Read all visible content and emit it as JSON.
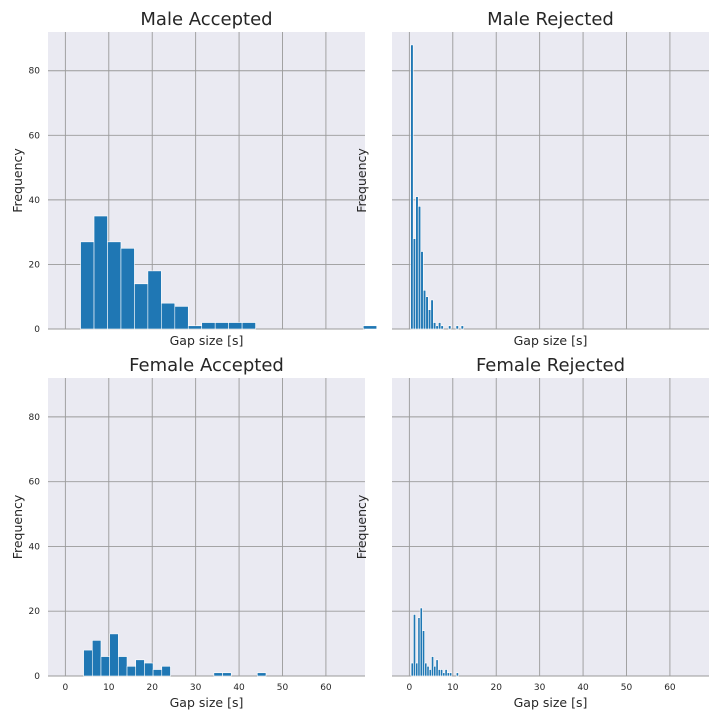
{
  "chart_data": [
    {
      "type": "bar",
      "title": "Male Accepted",
      "xlabel": "Gap size [s]",
      "ylabel": "Frequency",
      "xlim": [
        -4,
        69
      ],
      "ylim": [
        0,
        92
      ],
      "xticks": [
        0,
        10,
        20,
        30,
        40,
        50,
        60
      ],
      "yticks": [
        0,
        20,
        40,
        60,
        80
      ],
      "show_xticklabels": false,
      "show_yticklabels": true,
      "show_xlabel": true,
      "grid": true,
      "bin_width": 3.1,
      "bin_start": 3.5,
      "counts": [
        27,
        35,
        27,
        25,
        14,
        18,
        8,
        7,
        1,
        2,
        2,
        2,
        2,
        0,
        0,
        0,
        0,
        0,
        0,
        0,
        0,
        1
      ]
    },
    {
      "type": "bar",
      "title": "Male Rejected",
      "xlabel": "Gap size [s]",
      "ylabel": "Frequency",
      "xlim": [
        -4,
        69
      ],
      "ylim": [
        0,
        92
      ],
      "xticks": [
        0,
        10,
        20,
        30,
        40,
        50,
        60
      ],
      "yticks": [
        0,
        20,
        40,
        60,
        80
      ],
      "show_xticklabels": false,
      "show_yticklabels": false,
      "show_xlabel": true,
      "grid": true,
      "bin_width": 0.58,
      "bin_start": 0.3,
      "counts": [
        88,
        28,
        41,
        38,
        24,
        12,
        10,
        6,
        9,
        2,
        1,
        2,
        1,
        0,
        0,
        1,
        0,
        0,
        1,
        0,
        1
      ]
    },
    {
      "type": "bar",
      "title": "Female Accepted",
      "xlabel": "Gap size [s]",
      "ylabel": "Frequency",
      "xlim": [
        -4,
        69
      ],
      "ylim": [
        0,
        92
      ],
      "xticks": [
        0,
        10,
        20,
        30,
        40,
        50,
        60
      ],
      "yticks": [
        0,
        20,
        40,
        60,
        80
      ],
      "show_xticklabels": true,
      "show_yticklabels": true,
      "show_xlabel": true,
      "grid": true,
      "bin_width": 2.0,
      "bin_start": 4.2,
      "counts": [
        8,
        11,
        6,
        13,
        6,
        3,
        5,
        4,
        2,
        3,
        0,
        0,
        0,
        0,
        0,
        1,
        1,
        0,
        0,
        0,
        1
      ]
    },
    {
      "type": "bar",
      "title": "Female Rejected",
      "xlabel": "Gap size [s]",
      "ylabel": "Frequency",
      "xlim": [
        -4,
        69
      ],
      "ylim": [
        0,
        92
      ],
      "xticks": [
        0,
        10,
        20,
        30,
        40,
        50,
        60
      ],
      "yticks": [
        0,
        20,
        40,
        60,
        80
      ],
      "show_xticklabels": true,
      "show_yticklabels": false,
      "show_xlabel": true,
      "grid": true,
      "bin_width": 0.52,
      "bin_start": 0.4,
      "counts": [
        4,
        19,
        4,
        18,
        21,
        14,
        4,
        3,
        2,
        6,
        3,
        5,
        2,
        2,
        1,
        2,
        1,
        1,
        0,
        0,
        1
      ]
    }
  ]
}
